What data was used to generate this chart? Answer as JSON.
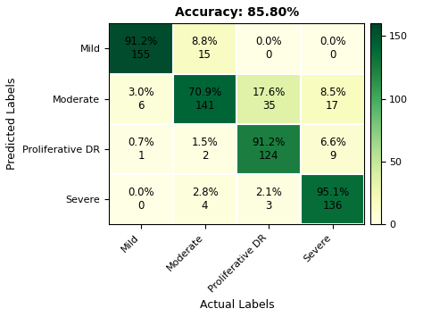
{
  "title": "Accuracy: 85.80%",
  "xlabel": "Actual Labels",
  "ylabel": "Predicted Labels",
  "classes": [
    "Mild",
    "Moderate",
    "Proliferative DR",
    "Severe"
  ],
  "matrix_values": [
    [
      155,
      15,
      0,
      0
    ],
    [
      6,
      141,
      35,
      17
    ],
    [
      1,
      2,
      124,
      9
    ],
    [
      0,
      4,
      3,
      136
    ]
  ],
  "matrix_percentages": [
    [
      91.2,
      8.8,
      0.0,
      0.0
    ],
    [
      3.0,
      70.9,
      17.6,
      8.5
    ],
    [
      0.7,
      1.5,
      91.2,
      6.6
    ],
    [
      0.0,
      2.8,
      2.1,
      95.1
    ]
  ],
  "cmap": "YlGn",
  "colorbar_ticks": [
    0,
    50,
    100,
    150
  ],
  "vmin": 0,
  "vmax": 160,
  "title_fontsize": 10,
  "label_fontsize": 9,
  "tick_fontsize": 8,
  "cell_fontsize": 8.5,
  "figsize": [
    4.74,
    3.55
  ],
  "dpi": 100
}
